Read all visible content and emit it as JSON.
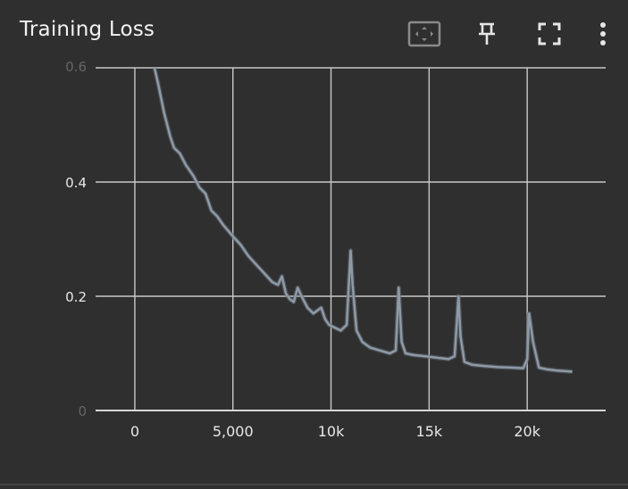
{
  "card": {
    "title": "Training Loss"
  },
  "toolbar": {
    "icons": [
      "fit-domain-icon",
      "pin-icon",
      "fullscreen-icon",
      "more-vertical-icon"
    ]
  },
  "colors": {
    "background": "#2f2f2f",
    "grid": "#c9c9c9",
    "axis": "#d6d6d6",
    "line_smoothed": "#8e9aa6",
    "line_raw": "#5f6770",
    "text": "#e8e8e8"
  },
  "chart_data": {
    "type": "line",
    "title": "Training Loss",
    "xlabel": "",
    "ylabel": "",
    "xlim": [
      -2000,
      24000
    ],
    "ylim": [
      0,
      0.6
    ],
    "x_ticks": [
      0,
      5000,
      10000,
      15000,
      20000
    ],
    "x_tick_labels": [
      "0",
      "5,000",
      "10k",
      "15k",
      "20k"
    ],
    "y_ticks": [
      0,
      0.2,
      0.4,
      0.6
    ],
    "y_tick_labels": [
      "0",
      "0.2",
      "0.4",
      "0.6"
    ],
    "grid": true,
    "legend": "none",
    "series": [
      {
        "x": [
          1000,
          1200,
          1500,
          1800,
          2000,
          2300,
          2600,
          3000,
          3300,
          3600,
          3900,
          4200,
          4500,
          5000,
          5400,
          5800,
          6200,
          6600,
          7000,
          7300,
          7500,
          7700,
          7900,
          8100,
          8300,
          8500,
          8800,
          9100,
          9300,
          9500,
          9700,
          9900,
          10200,
          10500,
          10800,
          11000,
          11100,
          11300,
          11600,
          12000,
          12500,
          13000,
          13300,
          13450,
          13600,
          13800,
          14200,
          14800,
          15500,
          16000,
          16300,
          16500,
          16600,
          16800,
          17200,
          17800,
          18500,
          19200,
          19800,
          20000,
          20100,
          20300,
          20600,
          21000,
          21500,
          22300
        ],
        "y": [
          0.6,
          0.57,
          0.52,
          0.48,
          0.46,
          0.45,
          0.43,
          0.41,
          0.39,
          0.38,
          0.35,
          0.34,
          0.325,
          0.305,
          0.29,
          0.27,
          0.255,
          0.24,
          0.225,
          0.22,
          0.235,
          0.205,
          0.195,
          0.19,
          0.215,
          0.2,
          0.18,
          0.17,
          0.175,
          0.18,
          0.16,
          0.15,
          0.145,
          0.14,
          0.15,
          0.28,
          0.22,
          0.14,
          0.12,
          0.11,
          0.105,
          0.1,
          0.105,
          0.215,
          0.12,
          0.1,
          0.097,
          0.095,
          0.092,
          0.09,
          0.095,
          0.2,
          0.13,
          0.085,
          0.08,
          0.078,
          0.076,
          0.075,
          0.074,
          0.09,
          0.17,
          0.12,
          0.075,
          0.072,
          0.07,
          0.068
        ]
      }
    ]
  }
}
